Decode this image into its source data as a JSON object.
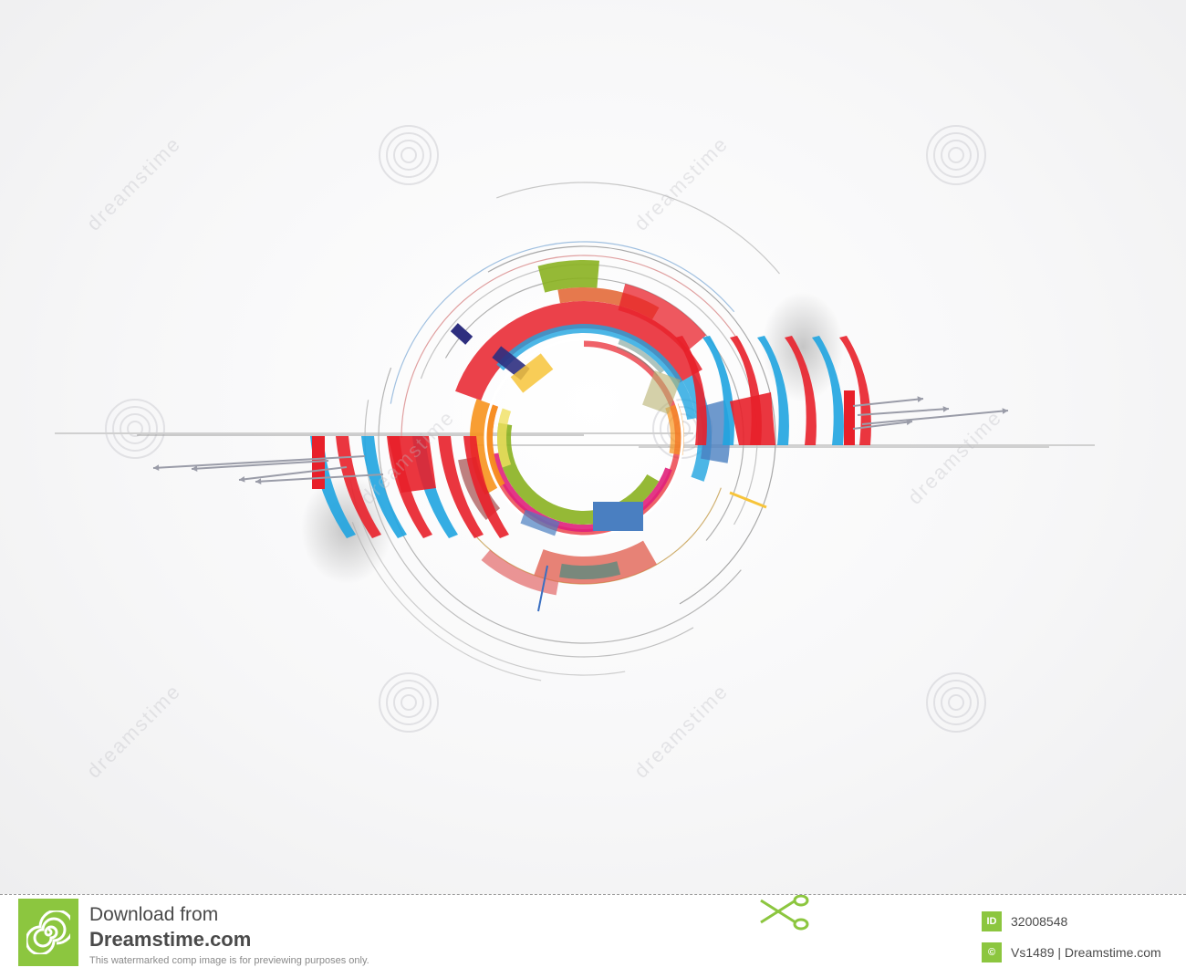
{
  "watermark": {
    "text": "dreamstime"
  },
  "footer": {
    "download_title": "Download from",
    "site_name": "Dreamstime.com",
    "notice": "This watermarked comp image is for previewing purposes only.",
    "image_id_label": "ID",
    "image_id": "32008548",
    "copyright_symbol": "©",
    "author_credit": "Vs1489 | Dreamstime.com",
    "icons": [
      "spiral-logo-icon",
      "scissors-icon"
    ]
  },
  "colors": {
    "brand_green": "#8cc63f",
    "red": "#e8202a",
    "blue": "#1fa4e0",
    "orange": "#f7941d",
    "olive": "#8ab120",
    "slate": "#5e8a7e",
    "navy": "#2e2f7f"
  }
}
